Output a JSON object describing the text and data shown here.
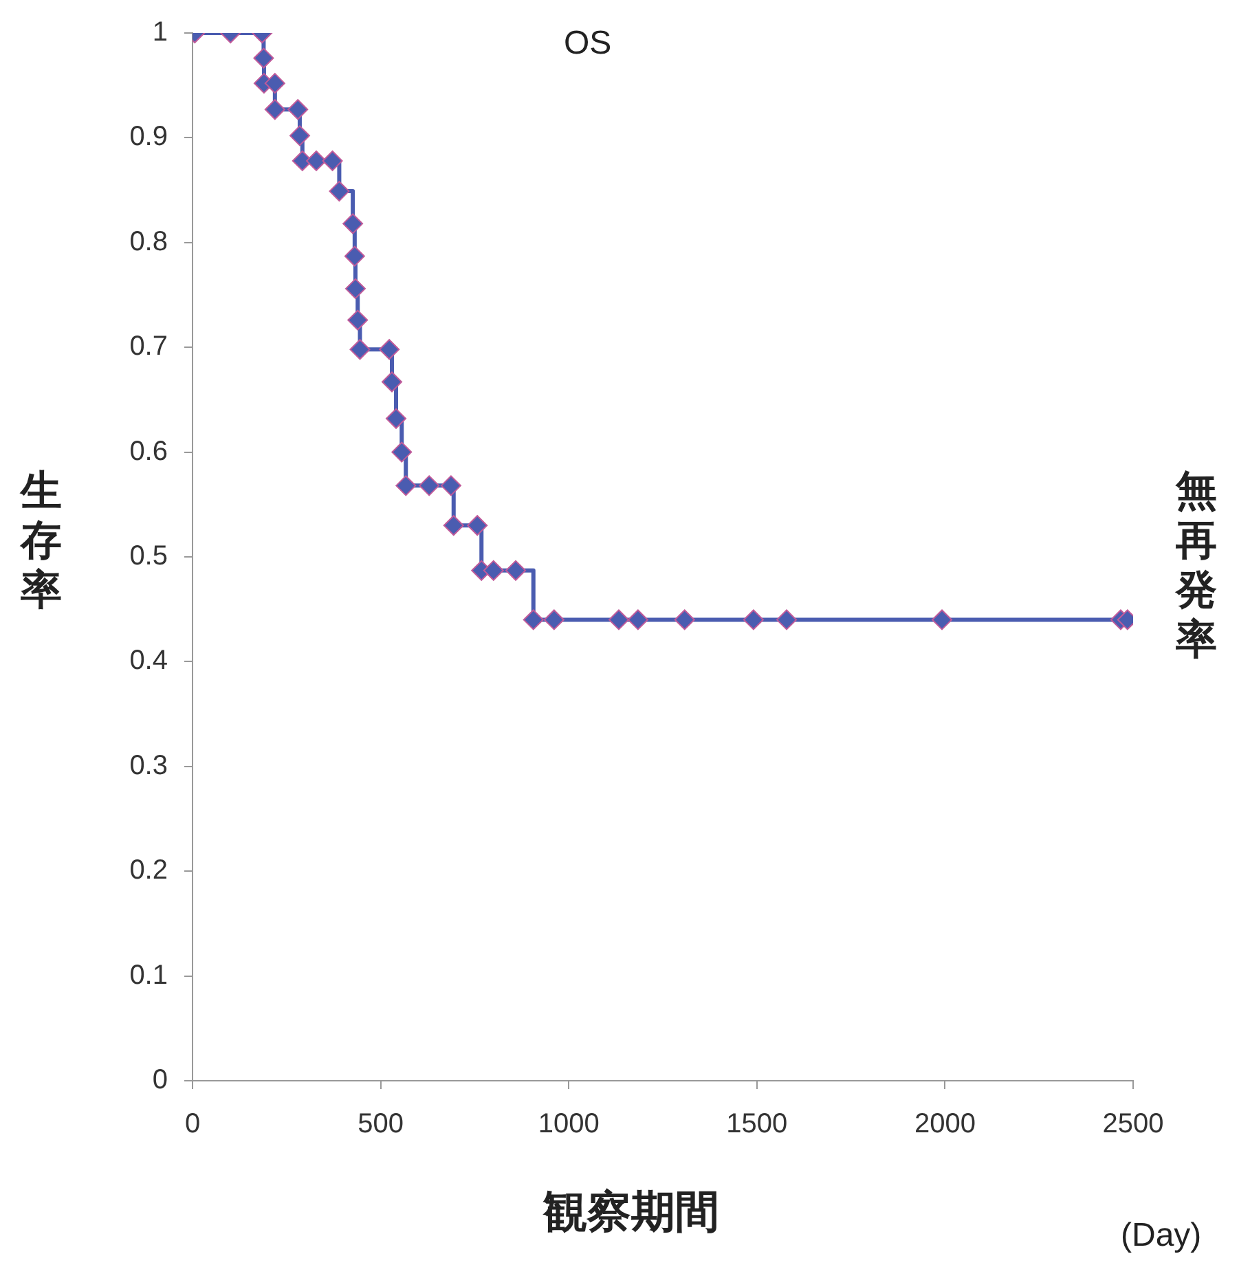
{
  "chart_data": {
    "type": "step",
    "title": "OS",
    "xlabel": "観察期間",
    "ylabel": "生存率",
    "annotations": [
      "無再発率",
      "(Day)"
    ],
    "x": [
      6,
      101,
      185,
      189,
      190,
      219,
      219,
      280,
      285,
      292,
      329,
      372,
      390,
      426,
      431,
      433,
      439,
      445,
      523,
      530,
      541,
      556,
      567,
      629,
      687,
      694,
      757,
      768,
      800,
      859,
      906,
      961,
      1133,
      1184,
      1308,
      1491,
      1579,
      1992,
      2467,
      2485
    ],
    "series": [
      {
        "color": "#4a5cb0",
        "values": [
          1,
          1,
          1,
          0.976,
          0.952,
          0.952,
          0.927,
          0.927,
          0.902,
          0.878,
          0.878,
          0.878,
          0.849,
          0.818,
          0.787,
          0.756,
          0.726,
          0.698,
          0.698,
          0.667,
          0.632,
          0.6,
          0.568,
          0.568,
          0.568,
          0.53,
          0.53,
          0.487,
          0.487,
          0.487,
          0.44,
          0.44,
          0.44,
          0.44,
          0.44,
          0.44,
          0.44,
          0.44,
          0.44,
          0.44
        ]
      }
    ],
    "xlim": [
      0,
      2500
    ],
    "xticks": [
      0,
      500,
      1000,
      1500,
      2000,
      2500
    ],
    "ylim": [
      0,
      1
    ],
    "yticks": [
      0,
      0.1,
      0.2,
      0.3,
      0.4,
      0.5,
      0.6,
      0.7,
      0.8,
      0.9,
      1
    ],
    "grid": false,
    "legend": false,
    "marker": "diamond",
    "line_style": "solid"
  }
}
